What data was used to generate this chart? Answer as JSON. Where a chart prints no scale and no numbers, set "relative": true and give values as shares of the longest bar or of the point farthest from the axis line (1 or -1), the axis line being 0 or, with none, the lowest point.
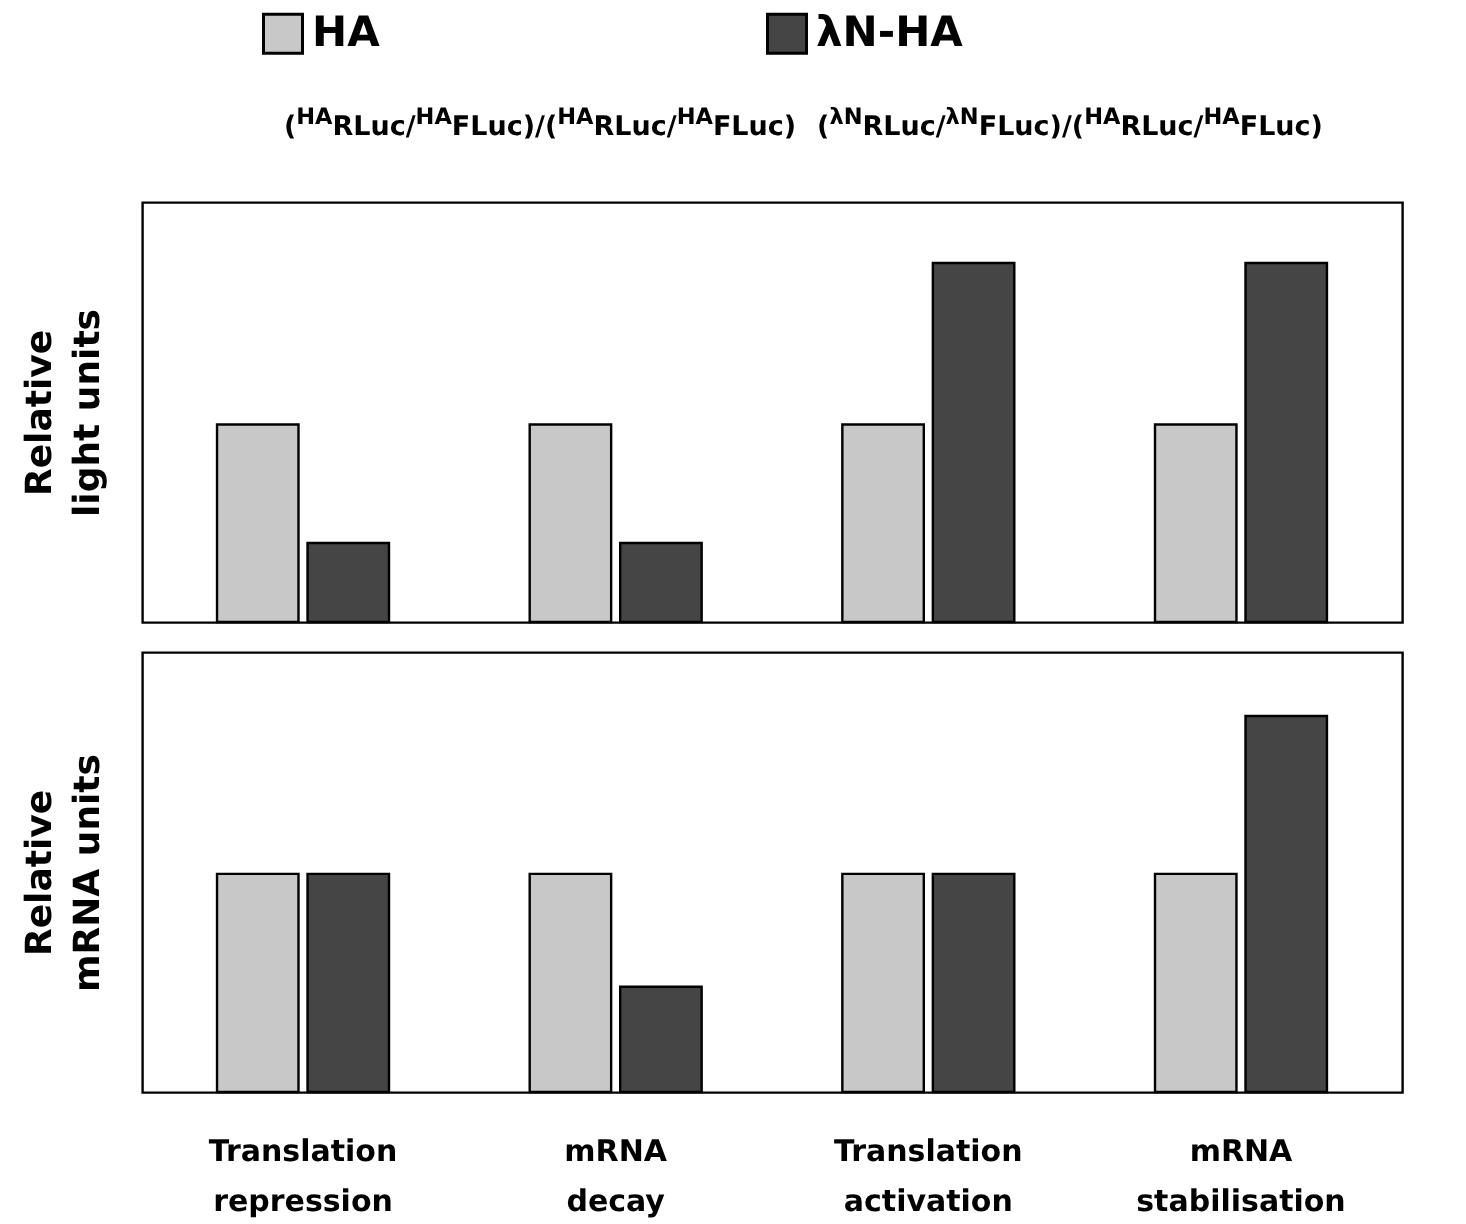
{
  "chart_data": [
    {
      "type": "bar",
      "relative": true,
      "ylabel": "Relative light units",
      "categories": [
        "Translation repression",
        "mRNA decay",
        "Translation activation",
        "mRNA stabilisation"
      ],
      "tick_labels": false,
      "legend": "top",
      "annotations": [
        "($^{HA}$RLuc/$^{HA}$FLuc)/($^{HA}$RLuc/$^{HA}$FLuc)",
        "($^{λN}$RLuc/$^{λN}$FLuc)/($^{HA}$RLuc/$^{HA}$FLuc)"
      ],
      "series": [
        {
          "name": "HA",
          "color": "#c8c8c8",
          "values": [
            0.55,
            0.55,
            0.55,
            0.55
          ]
        },
        {
          "name": "λN-HA",
          "color": "#454545",
          "values": [
            0.22,
            0.22,
            1,
            1
          ]
        }
      ]
    },
    {
      "type": "bar",
      "relative": true,
      "ylabel": "Relative mRNA units",
      "categories": [
        "Translation repression",
        "mRNA decay",
        "Translation activation",
        "mRNA stabilisation"
      ],
      "tick_labels": "x",
      "series": [
        {
          "color": "#c8c8c8",
          "values": [
            0.58,
            0.58,
            0.58,
            0.58
          ]
        },
        {
          "color": "#454545",
          "values": [
            0.58,
            0.28,
            0.58,
            1
          ]
        }
      ]
    }
  ]
}
